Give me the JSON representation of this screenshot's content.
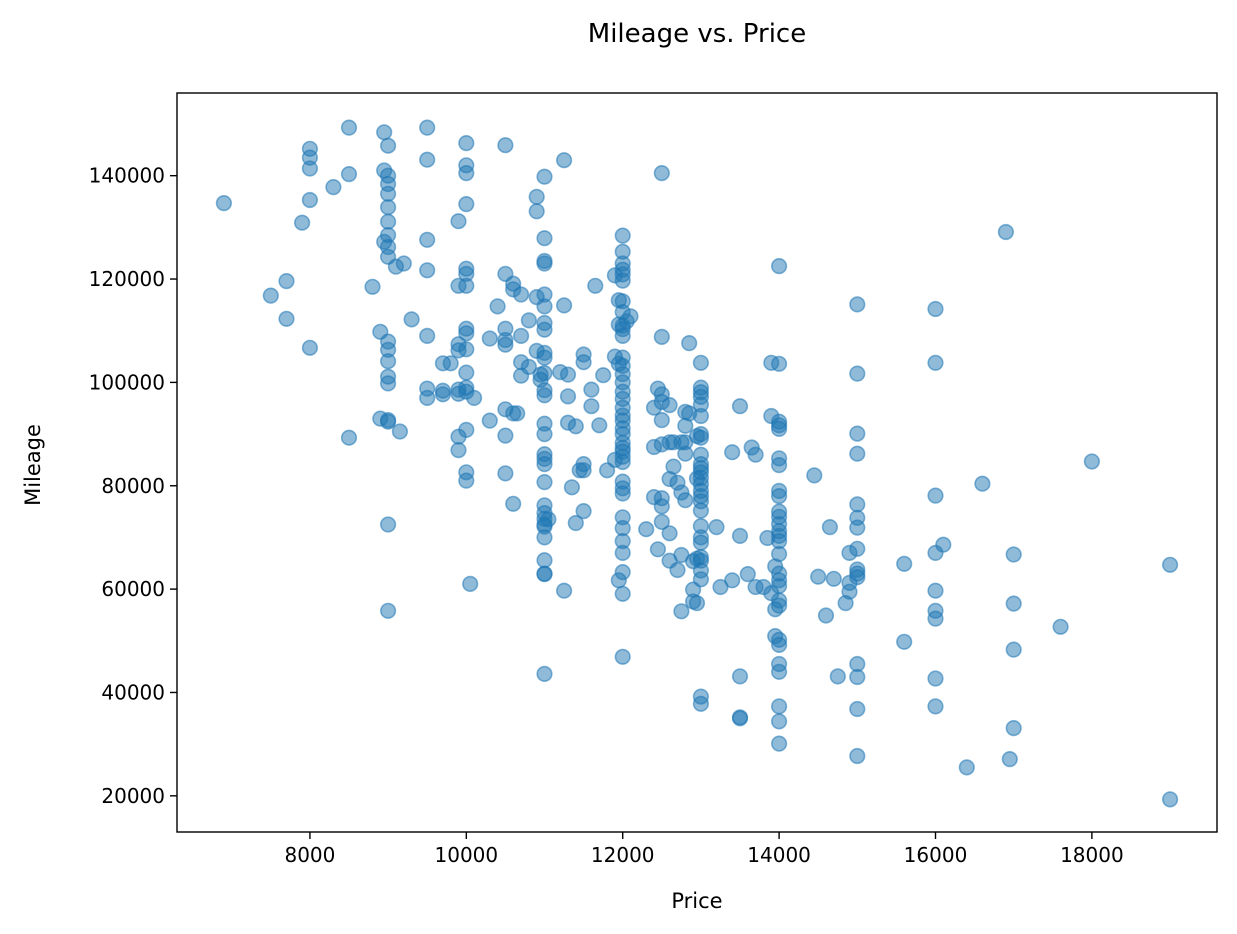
{
  "chart_data": {
    "type": "scatter",
    "title": "Mileage vs. Price",
    "xlabel": "Price",
    "ylabel": "Mileage",
    "xlim": [
      6300,
      19600
    ],
    "ylim": [
      13000,
      156000
    ],
    "xticks": [
      8000,
      10000,
      12000,
      14000,
      16000,
      18000
    ],
    "yticks": [
      20000,
      40000,
      60000,
      80000,
      100000,
      120000,
      140000
    ],
    "grid": false,
    "legend": "none",
    "marker_color": "#1f77b4",
    "marker_alpha": 0.5,
    "points": [
      [
        6900,
        134700
      ],
      [
        7500,
        116800
      ],
      [
        7700,
        119600
      ],
      [
        7700,
        112300
      ],
      [
        7900,
        130900
      ],
      [
        8000,
        145200
      ],
      [
        8000,
        143500
      ],
      [
        8000,
        141400
      ],
      [
        8000,
        135300
      ],
      [
        8000,
        106700
      ],
      [
        8300,
        137800
      ],
      [
        8500,
        149300
      ],
      [
        8500,
        140300
      ],
      [
        8500,
        89300
      ],
      [
        8800,
        118500
      ],
      [
        8900,
        109800
      ],
      [
        8900,
        93000
      ],
      [
        8950,
        148400
      ],
      [
        8950,
        141000
      ],
      [
        8950,
        127200
      ],
      [
        9000,
        145800
      ],
      [
        9000,
        140000
      ],
      [
        9000,
        138400
      ],
      [
        9000,
        136500
      ],
      [
        9000,
        133900
      ],
      [
        9000,
        131100
      ],
      [
        9000,
        128500
      ],
      [
        9000,
        126200
      ],
      [
        9000,
        124300
      ],
      [
        9000,
        107900
      ],
      [
        9000,
        106300
      ],
      [
        9000,
        104100
      ],
      [
        9000,
        101100
      ],
      [
        9000,
        99800
      ],
      [
        9000,
        92700
      ],
      [
        9000,
        92400
      ],
      [
        9000,
        72500
      ],
      [
        9000,
        55800
      ],
      [
        9100,
        122400
      ],
      [
        9150,
        90500
      ],
      [
        9200,
        123000
      ],
      [
        9300,
        112200
      ],
      [
        9500,
        149300
      ],
      [
        9500,
        143100
      ],
      [
        9500,
        127600
      ],
      [
        9500,
        121700
      ],
      [
        9500,
        109000
      ],
      [
        9500,
        98800
      ],
      [
        9500,
        97000
      ],
      [
        9700,
        103700
      ],
      [
        9700,
        98400
      ],
      [
        9700,
        97700
      ],
      [
        9800,
        103700
      ],
      [
        9900,
        131200
      ],
      [
        9900,
        118700
      ],
      [
        9900,
        107400
      ],
      [
        9900,
        106200
      ],
      [
        9900,
        98600
      ],
      [
        9900,
        97800
      ],
      [
        9900,
        89500
      ],
      [
        9900,
        86900
      ],
      [
        10000,
        146300
      ],
      [
        10000,
        142000
      ],
      [
        10000,
        140500
      ],
      [
        10000,
        134500
      ],
      [
        10000,
        122000
      ],
      [
        10000,
        121000
      ],
      [
        10000,
        118700
      ],
      [
        10000,
        110400
      ],
      [
        10000,
        109500
      ],
      [
        10000,
        106400
      ],
      [
        10000,
        101900
      ],
      [
        10000,
        99000
      ],
      [
        10000,
        98200
      ],
      [
        10000,
        90800
      ],
      [
        10000,
        82600
      ],
      [
        10000,
        81000
      ],
      [
        10050,
        61000
      ],
      [
        10100,
        97000
      ],
      [
        10300,
        108500
      ],
      [
        10300,
        92600
      ],
      [
        10400,
        114700
      ],
      [
        10500,
        145900
      ],
      [
        10500,
        121000
      ],
      [
        10500,
        110400
      ],
      [
        10500,
        108200
      ],
      [
        10500,
        107300
      ],
      [
        10500,
        94800
      ],
      [
        10500,
        89700
      ],
      [
        10500,
        82400
      ],
      [
        10600,
        119100
      ],
      [
        10600,
        118000
      ],
      [
        10600,
        94000
      ],
      [
        10600,
        76500
      ],
      [
        10650,
        94000
      ],
      [
        10700,
        117000
      ],
      [
        10700,
        109000
      ],
      [
        10700,
        103900
      ],
      [
        10700,
        101300
      ],
      [
        10800,
        112000
      ],
      [
        10800,
        103000
      ],
      [
        10900,
        116500
      ],
      [
        10900,
        135900
      ],
      [
        10900,
        133100
      ],
      [
        10900,
        106100
      ],
      [
        10950,
        101500
      ],
      [
        10950,
        100500
      ],
      [
        11000,
        139800
      ],
      [
        11000,
        127900
      ],
      [
        11000,
        123500
      ],
      [
        11000,
        123000
      ],
      [
        11000,
        117000
      ],
      [
        11000,
        114700
      ],
      [
        11000,
        111500
      ],
      [
        11000,
        110200
      ],
      [
        11000,
        105700
      ],
      [
        11000,
        104800
      ],
      [
        11000,
        101800
      ],
      [
        11000,
        98500
      ],
      [
        11000,
        97500
      ],
      [
        11000,
        92000
      ],
      [
        11000,
        90000
      ],
      [
        11000,
        86100
      ],
      [
        11000,
        85200
      ],
      [
        11000,
        84200
      ],
      [
        11000,
        80700
      ],
      [
        11000,
        76200
      ],
      [
        11000,
        74700
      ],
      [
        11000,
        73600
      ],
      [
        11000,
        72500
      ],
      [
        11000,
        72100
      ],
      [
        11000,
        70000
      ],
      [
        11000,
        65600
      ],
      [
        11000,
        63000
      ],
      [
        11000,
        62900
      ],
      [
        11000,
        43600
      ],
      [
        11050,
        73500
      ],
      [
        11200,
        102000
      ],
      [
        11250,
        114900
      ],
      [
        11250,
        143000
      ],
      [
        11250,
        59700
      ],
      [
        11300,
        101500
      ],
      [
        11300,
        97300
      ],
      [
        11300,
        92200
      ],
      [
        11350,
        79700
      ],
      [
        11400,
        91500
      ],
      [
        11400,
        72800
      ],
      [
        11450,
        83000
      ],
      [
        11500,
        105400
      ],
      [
        11500,
        103900
      ],
      [
        11500,
        84200
      ],
      [
        11500,
        83000
      ],
      [
        11500,
        75100
      ],
      [
        11600,
        98600
      ],
      [
        11600,
        95400
      ],
      [
        11650,
        118700
      ],
      [
        11700,
        91700
      ],
      [
        11750,
        101400
      ],
      [
        11800,
        83000
      ],
      [
        11900,
        120700
      ],
      [
        11900,
        105000
      ],
      [
        11900,
        85000
      ],
      [
        11950,
        115900
      ],
      [
        11950,
        111200
      ],
      [
        11950,
        103600
      ],
      [
        11950,
        61700
      ],
      [
        12000,
        128400
      ],
      [
        12000,
        125300
      ],
      [
        12000,
        123000
      ],
      [
        12000,
        121800
      ],
      [
        12000,
        120900
      ],
      [
        12000,
        119700
      ],
      [
        12000,
        115700
      ],
      [
        12000,
        113600
      ],
      [
        12000,
        111000
      ],
      [
        12000,
        110300
      ],
      [
        12000,
        109000
      ],
      [
        12000,
        104800
      ],
      [
        12000,
        103200
      ],
      [
        12000,
        101600
      ],
      [
        12000,
        100000
      ],
      [
        12000,
        98200
      ],
      [
        12000,
        96800
      ],
      [
        12000,
        95100
      ],
      [
        12000,
        93600
      ],
      [
        12000,
        92600
      ],
      [
        12000,
        91100
      ],
      [
        12000,
        90000
      ],
      [
        12000,
        88300
      ],
      [
        12000,
        87300
      ],
      [
        12000,
        86600
      ],
      [
        12000,
        85600
      ],
      [
        12000,
        84600
      ],
      [
        12000,
        80800
      ],
      [
        12000,
        79500
      ],
      [
        12000,
        78500
      ],
      [
        12000,
        73900
      ],
      [
        12000,
        71800
      ],
      [
        12000,
        69300
      ],
      [
        12000,
        67000
      ],
      [
        12000,
        63300
      ],
      [
        12000,
        59100
      ],
      [
        12000,
        46900
      ],
      [
        12050,
        111800
      ],
      [
        12100,
        112800
      ],
      [
        12300,
        71600
      ],
      [
        12400,
        87500
      ],
      [
        12400,
        77800
      ],
      [
        12400,
        95100
      ],
      [
        12450,
        98800
      ],
      [
        12450,
        67700
      ],
      [
        12500,
        140500
      ],
      [
        12500,
        108800
      ],
      [
        12500,
        97700
      ],
      [
        12500,
        96200
      ],
      [
        12500,
        92700
      ],
      [
        12500,
        88000
      ],
      [
        12500,
        77600
      ],
      [
        12500,
        76000
      ],
      [
        12500,
        73000
      ],
      [
        12600,
        95600
      ],
      [
        12600,
        88400
      ],
      [
        12600,
        81300
      ],
      [
        12600,
        70800
      ],
      [
        12600,
        65500
      ],
      [
        12650,
        83700
      ],
      [
        12650,
        88400
      ],
      [
        12700,
        80600
      ],
      [
        12700,
        63700
      ],
      [
        12750,
        88400
      ],
      [
        12750,
        78700
      ],
      [
        12750,
        66600
      ],
      [
        12750,
        55700
      ],
      [
        12800,
        94300
      ],
      [
        12800,
        91600
      ],
      [
        12800,
        88400
      ],
      [
        12800,
        86200
      ],
      [
        12800,
        77200
      ],
      [
        12850,
        107600
      ],
      [
        12850,
        94000
      ],
      [
        12900,
        65400
      ],
      [
        12900,
        59900
      ],
      [
        12900,
        57600
      ],
      [
        12950,
        81400
      ],
      [
        12950,
        65900
      ],
      [
        12950,
        57300
      ],
      [
        12950,
        89600
      ],
      [
        13000,
        103800
      ],
      [
        13000,
        99000
      ],
      [
        13000,
        98100
      ],
      [
        13000,
        97200
      ],
      [
        13000,
        95700
      ],
      [
        13000,
        93500
      ],
      [
        13000,
        90000
      ],
      [
        13000,
        89300
      ],
      [
        13000,
        86000
      ],
      [
        13000,
        84200
      ],
      [
        13000,
        83400
      ],
      [
        13000,
        82600
      ],
      [
        13000,
        81500
      ],
      [
        13000,
        80300
      ],
      [
        13000,
        79000
      ],
      [
        13000,
        78000
      ],
      [
        13000,
        77000
      ],
      [
        13000,
        75200
      ],
      [
        13000,
        72200
      ],
      [
        13000,
        70000
      ],
      [
        13000,
        69000
      ],
      [
        13000,
        66200
      ],
      [
        13000,
        65500
      ],
      [
        13000,
        63600
      ],
      [
        13000,
        61900
      ],
      [
        13000,
        39200
      ],
      [
        13000,
        37800
      ],
      [
        13200,
        72000
      ],
      [
        13250,
        60400
      ],
      [
        13400,
        86500
      ],
      [
        13400,
        61700
      ],
      [
        13500,
        95400
      ],
      [
        13500,
        70300
      ],
      [
        13500,
        43100
      ],
      [
        13500,
        35200
      ],
      [
        13500,
        35000
      ],
      [
        13600,
        62900
      ],
      [
        13650,
        87400
      ],
      [
        13700,
        86000
      ],
      [
        13700,
        60400
      ],
      [
        13800,
        60400
      ],
      [
        13850,
        69900
      ],
      [
        13900,
        103800
      ],
      [
        13900,
        93500
      ],
      [
        13900,
        59200
      ],
      [
        13950,
        64400
      ],
      [
        13950,
        56100
      ],
      [
        13950,
        50900
      ],
      [
        14000,
        122500
      ],
      [
        14000,
        103600
      ],
      [
        14000,
        92400
      ],
      [
        14000,
        91700
      ],
      [
        14000,
        91000
      ],
      [
        14000,
        85300
      ],
      [
        14000,
        84000
      ],
      [
        14000,
        79000
      ],
      [
        14000,
        78000
      ],
      [
        14000,
        75000
      ],
      [
        14000,
        74000
      ],
      [
        14000,
        72600
      ],
      [
        14000,
        71200
      ],
      [
        14000,
        70300
      ],
      [
        14000,
        69300
      ],
      [
        14000,
        66800
      ],
      [
        14000,
        63000
      ],
      [
        14000,
        61700
      ],
      [
        14000,
        60600
      ],
      [
        14000,
        57800
      ],
      [
        14000,
        56800
      ],
      [
        14000,
        50200
      ],
      [
        14000,
        49200
      ],
      [
        14000,
        45500
      ],
      [
        14000,
        44000
      ],
      [
        14000,
        37300
      ],
      [
        14000,
        34400
      ],
      [
        14000,
        30100
      ],
      [
        14450,
        82000
      ],
      [
        14500,
        62400
      ],
      [
        14600,
        54900
      ],
      [
        14650,
        72000
      ],
      [
        14700,
        62000
      ],
      [
        14750,
        43100
      ],
      [
        14850,
        57300
      ],
      [
        14900,
        67000
      ],
      [
        14900,
        61200
      ],
      [
        14900,
        59500
      ],
      [
        15000,
        115100
      ],
      [
        15000,
        101700
      ],
      [
        15000,
        90100
      ],
      [
        15000,
        86200
      ],
      [
        15000,
        76400
      ],
      [
        15000,
        73800
      ],
      [
        15000,
        71900
      ],
      [
        15000,
        67800
      ],
      [
        15000,
        63800
      ],
      [
        15000,
        63000
      ],
      [
        15000,
        62300
      ],
      [
        15000,
        45500
      ],
      [
        15000,
        43000
      ],
      [
        15000,
        36800
      ],
      [
        15000,
        27700
      ],
      [
        15600,
        64900
      ],
      [
        15600,
        49800
      ],
      [
        16000,
        114200
      ],
      [
        16000,
        103800
      ],
      [
        16000,
        78100
      ],
      [
        16000,
        67000
      ],
      [
        16000,
        59700
      ],
      [
        16000,
        55800
      ],
      [
        16000,
        54300
      ],
      [
        16000,
        42700
      ],
      [
        16000,
        37300
      ],
      [
        16100,
        68600
      ],
      [
        16400,
        25500
      ],
      [
        16600,
        80400
      ],
      [
        16900,
        129100
      ],
      [
        16950,
        27100
      ],
      [
        17000,
        66700
      ],
      [
        17000,
        57200
      ],
      [
        17000,
        48300
      ],
      [
        17000,
        33100
      ],
      [
        17600,
        52700
      ],
      [
        18000,
        84700
      ],
      [
        19000,
        64700
      ],
      [
        19000,
        19300
      ]
    ]
  }
}
